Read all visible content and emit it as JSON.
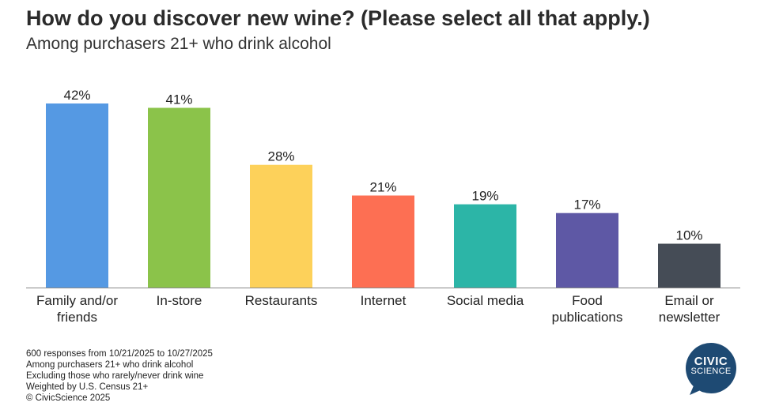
{
  "title": "How do you discover new wine? (Please select all that apply.)",
  "subtitle": "Among purchasers 21+ who drink alcohol",
  "chart_data": {
    "type": "bar",
    "title": "How do you discover new wine? (Please select all that apply.)",
    "subtitle": "Among purchasers 21+ who drink alcohol",
    "categories": [
      [
        "Family and/or",
        "friends"
      ],
      [
        "In-store"
      ],
      [
        "Restaurants"
      ],
      [
        "Internet"
      ],
      [
        "Social media"
      ],
      [
        "Food",
        "publications"
      ],
      [
        "Email or",
        "newsletter"
      ]
    ],
    "values": [
      42,
      41,
      28,
      21,
      19,
      17,
      10
    ],
    "value_labels": [
      "42%",
      "41%",
      "28%",
      "21%",
      "19%",
      "17%",
      "10%"
    ],
    "colors": [
      "#5599e3",
      "#8bc34a",
      "#fdd15a",
      "#fd6f53",
      "#2cb5a7",
      "#5e58a5",
      "#454c56"
    ],
    "xlabel": "",
    "ylabel": "",
    "ylim": [
      0,
      42
    ],
    "grid": false
  },
  "footnotes": [
    "600 responses from 10/21/2025 to 10/27/2025",
    "Among purchasers 21+ who drink alcohol",
    "Excluding those who rarely/never drink wine",
    "Weighted by U.S. Census 21+",
    "© CivicScience 2025"
  ],
  "logo": {
    "line1": "CIVIC",
    "line2": "SCIENCE",
    "color": "#1e4a73",
    "icon": "speech-bubble-icon"
  }
}
